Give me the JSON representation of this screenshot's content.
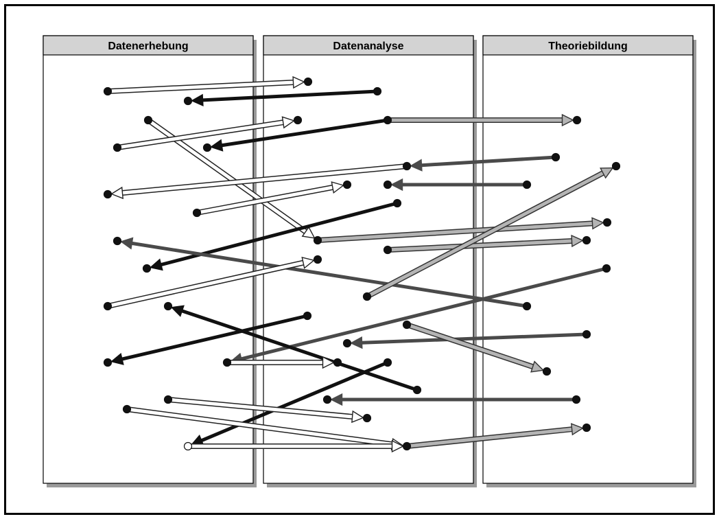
{
  "columns": [
    {
      "title": "Datenerhebung"
    },
    {
      "title": "Datenanalyse"
    },
    {
      "title": "Theoriebildung"
    }
  ],
  "colors": {
    "black": "#111111",
    "dark_gray": "#4a4a4a",
    "light_gray": "#b4b4b4",
    "outline_white": "#ffffff",
    "column_header_fill": "#d3d3d3",
    "column_shadow": "#9a9a9a"
  }
}
